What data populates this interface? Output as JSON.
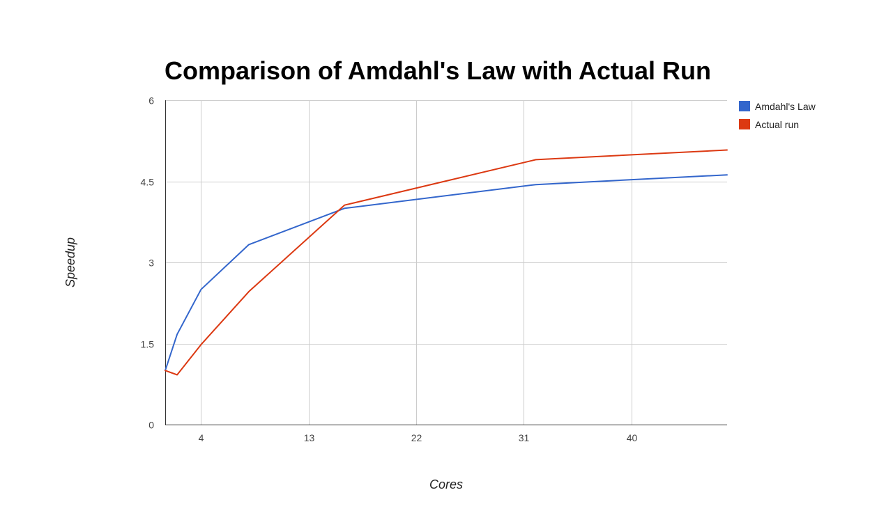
{
  "chart_data": {
    "type": "line",
    "title": "Comparison of Amdahl's Law with Actual Run",
    "xlabel": "Cores",
    "ylabel": "Speedup",
    "xlim": [
      1,
      48
    ],
    "ylim": [
      0,
      6
    ],
    "x_ticks": [
      4,
      13,
      22,
      31,
      40
    ],
    "y_ticks": [
      0,
      1.5,
      3,
      4.5,
      6
    ],
    "x_tick_labels": [
      "4",
      "13",
      "22",
      "31",
      "40"
    ],
    "y_tick_labels": [
      "0",
      "1.5",
      "3",
      "4.5",
      "6"
    ],
    "grid": true,
    "legend_position": "right",
    "x": [
      1,
      2,
      4,
      8,
      16,
      32,
      48
    ],
    "series": [
      {
        "name": "Amdahl's Law",
        "color": "#3366cc",
        "values": [
          1.0,
          1.67,
          2.5,
          3.33,
          4.0,
          4.44,
          4.62
        ]
      },
      {
        "name": "Actual run",
        "color": "#dc3912",
        "values": [
          1.0,
          0.92,
          1.48,
          2.46,
          4.06,
          4.9,
          5.08
        ]
      }
    ]
  }
}
